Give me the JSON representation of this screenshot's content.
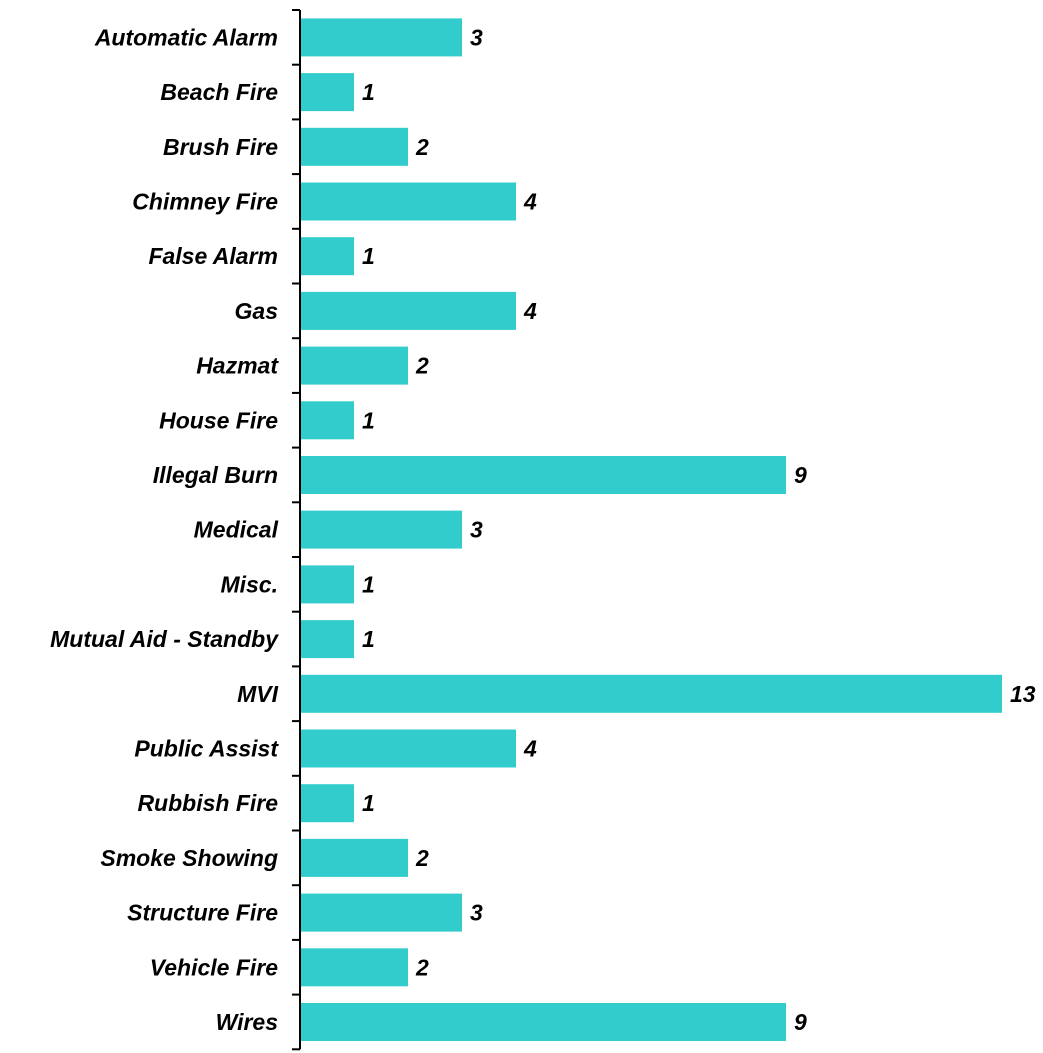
{
  "chart_data": {
    "type": "bar",
    "orientation": "horizontal",
    "categories": [
      "Automatic Alarm",
      "Beach Fire",
      "Brush Fire",
      "Chimney Fire",
      "False Alarm",
      "Gas",
      "Hazmat",
      "House Fire",
      "Illegal Burn",
      "Medical",
      "Misc.",
      "Mutual Aid - Standby",
      "MVI",
      "Public Assist",
      "Rubbish Fire",
      "Smoke Showing",
      "Structure Fire",
      "Vehicle Fire",
      "Wires"
    ],
    "values": [
      3,
      1,
      2,
      4,
      1,
      4,
      2,
      1,
      9,
      3,
      1,
      1,
      13,
      4,
      1,
      2,
      3,
      2,
      9
    ],
    "value_labels": [
      "3",
      "1",
      "2",
      "4",
      "1",
      "4",
      "2",
      "1",
      "9",
      "3",
      "1",
      "1",
      "13",
      "4",
      "1",
      "2",
      "3",
      "2",
      "9"
    ],
    "xlim": [
      0,
      13
    ],
    "bar_color": "#33CCCC",
    "data_labels": true,
    "grid": false,
    "legend": false
  }
}
